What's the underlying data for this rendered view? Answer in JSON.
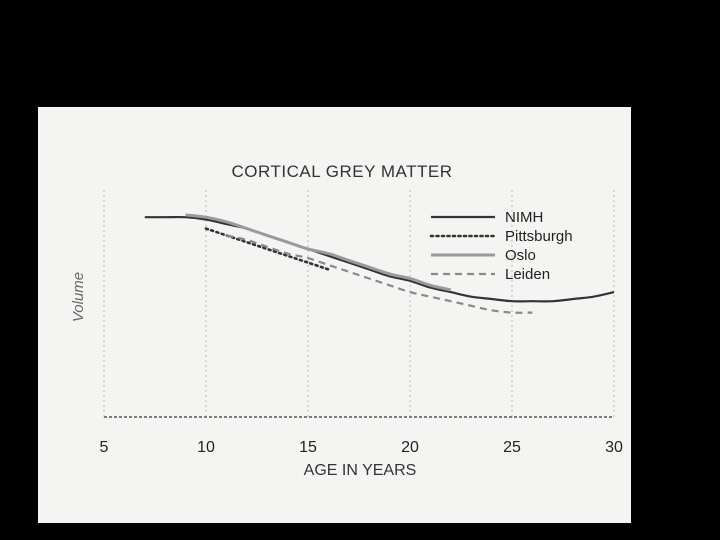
{
  "colors": {
    "background": "#000000",
    "paper": "#f4f4f2",
    "grid": "#b8b8b8",
    "axis": "#555555",
    "text": "#222222"
  },
  "chart_data": {
    "type": "line",
    "title": "CORTICAL GREY MATTER",
    "xlabel": "AGE IN YEARS",
    "ylabel": "Volume",
    "xlim": [
      5,
      30
    ],
    "xticks": [
      5,
      10,
      15,
      20,
      25,
      30
    ],
    "ylim": [
      0,
      1
    ],
    "y_ticks_shown": false,
    "grid": "vertical dashed",
    "legend_position": "top-right",
    "series": [
      {
        "name": "NIMH",
        "style": "solid",
        "color": "#333333",
        "x": [
          7,
          8,
          9,
          10,
          11,
          12,
          13,
          14,
          15,
          16,
          17,
          18,
          19,
          20,
          21,
          22,
          23,
          24,
          25,
          26,
          27,
          28,
          29,
          30
        ],
        "y": [
          0.88,
          0.88,
          0.88,
          0.87,
          0.85,
          0.83,
          0.8,
          0.77,
          0.74,
          0.71,
          0.68,
          0.65,
          0.62,
          0.6,
          0.57,
          0.55,
          0.53,
          0.52,
          0.51,
          0.51,
          0.51,
          0.52,
          0.53,
          0.55
        ]
      },
      {
        "name": "Pittsburgh",
        "style": "dotted",
        "color": "#333333",
        "x": [
          10,
          11,
          12,
          13,
          14,
          15,
          16
        ],
        "y": [
          0.83,
          0.8,
          0.77,
          0.74,
          0.71,
          0.68,
          0.65
        ]
      },
      {
        "name": "Oslo",
        "style": "solid-gray",
        "color": "#9a9a9a",
        "x": [
          9,
          10,
          11,
          12,
          13,
          14,
          15,
          16,
          17,
          18,
          19,
          20,
          21,
          22
        ],
        "y": [
          0.89,
          0.88,
          0.86,
          0.83,
          0.8,
          0.77,
          0.74,
          0.72,
          0.69,
          0.66,
          0.63,
          0.61,
          0.58,
          0.56
        ]
      },
      {
        "name": "Leiden",
        "style": "dashed-gray",
        "color": "#8a8a8a",
        "x": [
          11,
          12,
          13,
          14,
          15,
          16,
          17,
          18,
          19,
          20,
          21,
          22,
          23,
          24,
          25,
          26
        ],
        "y": [
          0.8,
          0.78,
          0.75,
          0.72,
          0.7,
          0.67,
          0.64,
          0.61,
          0.58,
          0.55,
          0.53,
          0.51,
          0.49,
          0.47,
          0.46,
          0.46
        ]
      }
    ]
  }
}
